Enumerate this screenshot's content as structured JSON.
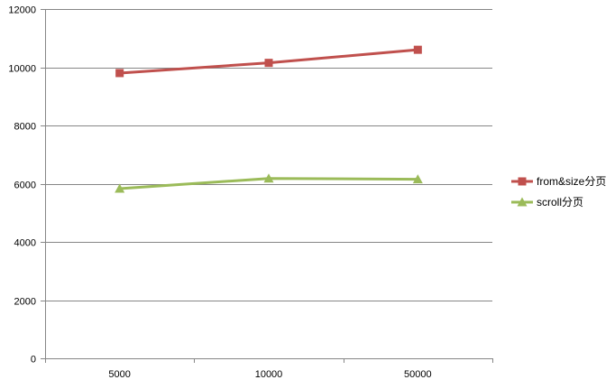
{
  "chart_data": {
    "type": "line",
    "categories": [
      "5000",
      "10000",
      "50000"
    ],
    "series": [
      {
        "name": "from&size分页",
        "values": [
          9800,
          10150,
          10600
        ],
        "color": "#c0504d",
        "marker": "square"
      },
      {
        "name": "scroll分页",
        "values": [
          5830,
          6180,
          6150
        ],
        "color": "#9bbb59",
        "marker": "triangle"
      }
    ],
    "ylim": [
      0,
      12000
    ],
    "yticks": [
      0,
      2000,
      4000,
      6000,
      8000,
      10000,
      12000
    ],
    "grid": true,
    "legend": "right"
  }
}
